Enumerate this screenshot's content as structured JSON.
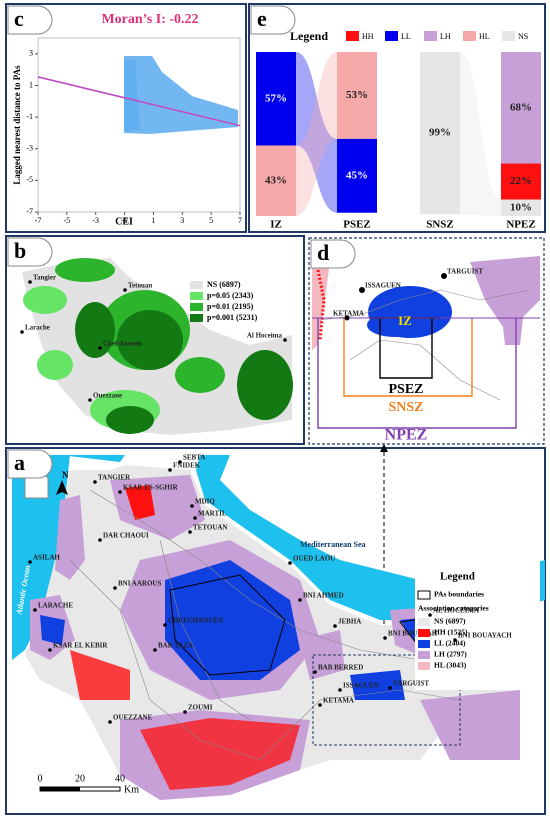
{
  "chart_data": [
    {
      "type": "scatter",
      "panel": "c",
      "title": "Moran’s I: -0.22",
      "x_label": "CEI",
      "y_label": "Lagged nearest distance to PAs",
      "xlim": [
        -7,
        7
      ],
      "ylim": [
        -7,
        4
      ],
      "xticks": [
        -7,
        -5,
        -3,
        -1,
        1,
        3,
        5,
        7
      ],
      "yticks": [
        -7,
        -5,
        -3,
        -1,
        1,
        3
      ],
      "color": "#5aaaf0",
      "line": {
        "x": [
          -7,
          7
        ],
        "values": [
          1.54,
          -1.54
        ],
        "color": "#c050c0"
      }
    },
    {
      "type": "alluvial",
      "panel": "e",
      "legend_title": "Legend",
      "ylim": [
        0,
        100
      ],
      "classes": [
        {
          "name": "HH",
          "color": "#ff1010"
        },
        {
          "name": "LL",
          "color": "#0000ee"
        },
        {
          "name": "LH",
          "color": "#c8a0d8"
        },
        {
          "name": "HL",
          "color": "#f4a8a8"
        },
        {
          "name": "NS",
          "color": "#e6e6e6"
        }
      ],
      "categories": [
        "IZ",
        "PSEZ",
        "SNSZ",
        "NPEZ"
      ],
      "columns": [
        {
          "classes": [
            "LL",
            "HL"
          ],
          "values": [
            57,
            43
          ],
          "value_labels": [
            "57%",
            "43%"
          ]
        },
        {
          "classes": [
            "HL",
            "LL"
          ],
          "values": [
            53,
            45
          ],
          "value_labels": [
            "53%",
            "45%"
          ]
        },
        {
          "classes": [
            "NS"
          ],
          "values": [
            99
          ],
          "value_labels": [
            "99%"
          ]
        },
        {
          "classes": [
            "LH",
            "HH",
            "NS"
          ],
          "values": [
            68,
            22,
            10
          ],
          "value_labels": [
            "68%",
            "22%",
            "10%"
          ]
        }
      ]
    }
  ],
  "map_b": {
    "label": "b",
    "places": [
      "Tangier",
      "Tetouan",
      "Larache",
      "Chefchaouen",
      "Al Hoceima",
      "Ouezzane"
    ],
    "legend": [
      {
        "label": "NS (6897)",
        "color": "#e2e2e2"
      },
      {
        "label": "p=0.05 (2343)",
        "color": "#66e466"
      },
      {
        "label": "p=0.01 (2195)",
        "color": "#2cb52c"
      },
      {
        "label": "p=0.001 (5231)",
        "color": "#137a13"
      }
    ]
  },
  "map_d": {
    "label": "d",
    "places": [
      "ISSAGUEN",
      "TARGUIST",
      "KETAMA"
    ],
    "zones": [
      {
        "name": "IZ",
        "color": "#f0e000"
      },
      {
        "name": "PSEZ",
        "color": "#000000"
      },
      {
        "name": "SNSZ",
        "color": "#f07f1e"
      },
      {
        "name": "NPEZ",
        "color": "#8040b0"
      }
    ]
  },
  "map_a": {
    "label": "a",
    "north": "N",
    "legend_title": "Legend",
    "boundary_label": "PAs boundaries",
    "categories_title": "Association categories",
    "legend": [
      {
        "label": "NS (6897)",
        "color": "#e8e8e8"
      },
      {
        "label": "HH (1525)",
        "color": "#ff1010"
      },
      {
        "label": "LL (2404)",
        "color": "#1040e0"
      },
      {
        "label": "LH (2797)",
        "color": "#c8a0d8"
      },
      {
        "label": "HL (3043)",
        "color": "#f4b8c0"
      }
    ],
    "seas": [
      "Atlantic Ocean",
      "Mediterranean Sea"
    ],
    "places": [
      "TANGIER",
      "SEBTA",
      "FNIDEK",
      "KSAR ES-SGHIR",
      "MDIQ",
      "MARTIL",
      "TETOUAN",
      "DAR CHAOUI",
      "ASILAH",
      "OUED LAOU",
      "BNI AAROUS",
      "CHEFCHAOUEN",
      "BNI AHMED",
      "BAB TAZA",
      "BAB BERRED",
      "JEBHA",
      "LARACHE",
      "KSAR EL KEBIR",
      "OUEZZANE",
      "ZOUMI",
      "ISSAGUEN",
      "TARGUIST",
      "KETAMA",
      "AL HOCEIMA",
      "BNI BOUFRAH",
      "BNI BOUAYACH"
    ],
    "scale": [
      0,
      20,
      40
    ],
    "scale_unit": "Km"
  }
}
